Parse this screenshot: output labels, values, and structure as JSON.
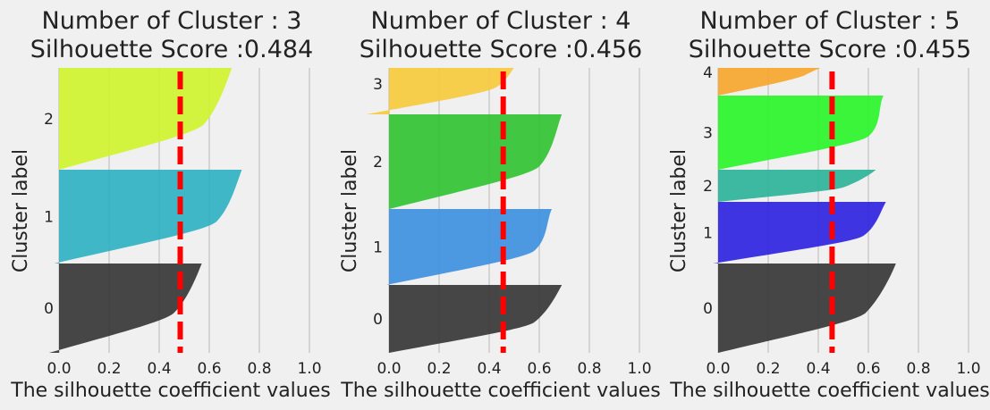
{
  "chart_data": [
    {
      "type": "area",
      "title": "Number of Cluster : 3",
      "subtitle": "Silhouette Score :0.484",
      "xlabel": "The silhouette coefficient values",
      "ylabel": "Cluster label",
      "xlim": [
        -0.1,
        1.0
      ],
      "xticks": [
        "0.0",
        "0.2",
        "0.4",
        "0.6",
        "0.8",
        "1.0"
      ],
      "grid": true,
      "average_score": 0.484,
      "clusters": [
        {
          "label": "0",
          "color": "#333333",
          "min": -0.04,
          "max": 0.57,
          "knee": 0.46
        },
        {
          "label": "1",
          "color": "#2bb0c2",
          "min": -0.02,
          "max": 0.73,
          "knee": 0.63
        },
        {
          "label": "2",
          "color": "#cff42a",
          "min": 0.0,
          "max": 0.69,
          "knee": 0.58
        }
      ]
    },
    {
      "type": "area",
      "title": "Number of Cluster : 4",
      "subtitle": "Silhouette Score :0.456",
      "xlabel": "The silhouette coefficient values",
      "ylabel": "Cluster label",
      "xlim": [
        -0.1,
        1.0
      ],
      "xticks": [
        "0.0",
        "0.2",
        "0.4",
        "0.6",
        "0.8",
        "1.0"
      ],
      "grid": true,
      "average_score": 0.456,
      "clusters": [
        {
          "label": "0",
          "color": "#333333",
          "min": 0.0,
          "max": 0.69,
          "knee": 0.58
        },
        {
          "label": "1",
          "color": "#3a8fe0",
          "min": -0.01,
          "max": 0.65,
          "knee": 0.58
        },
        {
          "label": "2",
          "color": "#2fc22f",
          "min": 0.0,
          "max": 0.69,
          "knee": 0.6
        },
        {
          "label": "3",
          "color": "#f7c93a",
          "min": -0.09,
          "max": 0.53,
          "knee": 0.43
        }
      ]
    },
    {
      "type": "area",
      "title": "Number of Cluster : 5",
      "subtitle": "Silhouette Score :0.455",
      "xlabel": "The silhouette coefficient values",
      "ylabel": "Cluster label",
      "xlim": [
        -0.1,
        1.0
      ],
      "xticks": [
        "0.0",
        "0.2",
        "0.4",
        "0.6",
        "0.8",
        "1.0"
      ],
      "grid": true,
      "average_score": 0.455,
      "clusters": [
        {
          "label": "0",
          "color": "#333333",
          "min": 0.0,
          "max": 0.71,
          "knee": 0.59
        },
        {
          "label": "1",
          "color": "#2a1fe0",
          "min": -0.02,
          "max": 0.67,
          "knee": 0.58
        },
        {
          "label": "2",
          "color": "#2ab398",
          "min": 0.0,
          "max": 0.63,
          "knee": 0.5
        },
        {
          "label": "3",
          "color": "#26f526",
          "min": 0.0,
          "max": 0.66,
          "knee": 0.6
        },
        {
          "label": "4",
          "color": "#f7a52a",
          "min": 0.0,
          "max": 0.55,
          "knee": 0.35
        }
      ]
    }
  ]
}
